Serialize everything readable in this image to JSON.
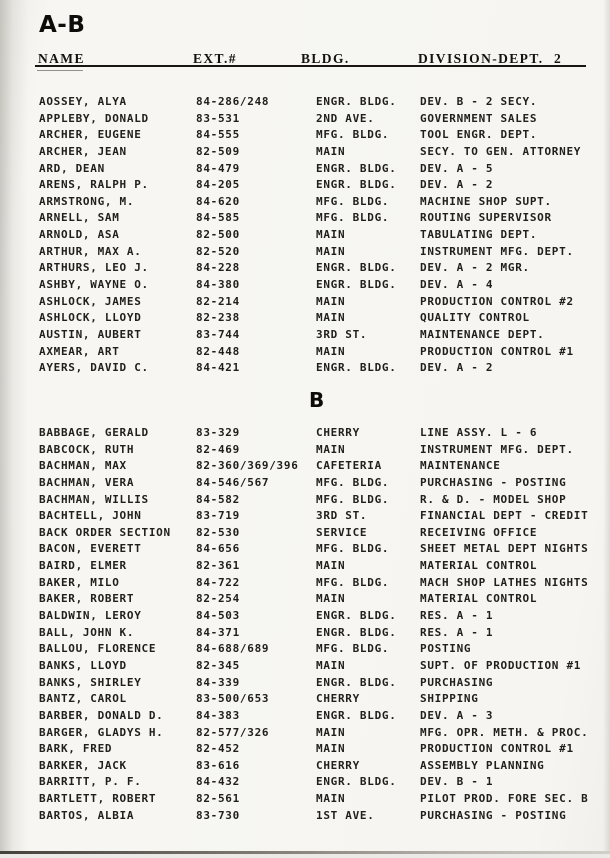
{
  "page": {
    "title": "A-B",
    "page_number": "2",
    "columns": [
      "NAME",
      "EXT.#",
      "BLDG.",
      "DIVISION-DEPT."
    ]
  },
  "sections": [
    {
      "label": "",
      "rows": [
        {
          "name": "AOSSEY, ALYA",
          "ext": "84-286/248",
          "bldg": "ENGR. BLDG.",
          "dept": "DEV. B - 2 SECY."
        },
        {
          "name": "APPLEBY, DONALD",
          "ext": "83-531",
          "bldg": "2ND AVE.",
          "dept": "GOVERNMENT SALES"
        },
        {
          "name": "ARCHER, EUGENE",
          "ext": "84-555",
          "bldg": "MFG. BLDG.",
          "dept": "TOOL ENGR. DEPT."
        },
        {
          "name": "ARCHER, JEAN",
          "ext": "82-509",
          "bldg": "MAIN",
          "dept": "SECY. TO GEN. ATTORNEY"
        },
        {
          "name": "ARD, DEAN",
          "ext": "84-479",
          "bldg": "ENGR. BLDG.",
          "dept": "DEV. A - 5"
        },
        {
          "name": "ARENS, RALPH P.",
          "ext": "84-205",
          "bldg": "ENGR. BLDG.",
          "dept": "DEV. A - 2"
        },
        {
          "name": "ARMSTRONG, M.",
          "ext": "84-620",
          "bldg": "MFG. BLDG.",
          "dept": "MACHINE SHOP SUPT."
        },
        {
          "name": "ARNELL, SAM",
          "ext": "84-585",
          "bldg": "MFG. BLDG.",
          "dept": "ROUTING SUPERVISOR"
        },
        {
          "name": "ARNOLD, ASA",
          "ext": "82-500",
          "bldg": "MAIN",
          "dept": "TABULATING DEPT."
        },
        {
          "name": "ARTHUR, MAX A.",
          "ext": "82-520",
          "bldg": "MAIN",
          "dept": "INSTRUMENT MFG. DEPT."
        },
        {
          "name": "ARTHURS, LEO J.",
          "ext": "84-228",
          "bldg": "ENGR. BLDG.",
          "dept": "DEV. A - 2 MGR."
        },
        {
          "name": "ASHBY, WAYNE O.",
          "ext": "84-380",
          "bldg": "ENGR. BLDG.",
          "dept": "DEV. A - 4"
        },
        {
          "name": "ASHLOCK, JAMES",
          "ext": "82-214",
          "bldg": "MAIN",
          "dept": "PRODUCTION CONTROL #2"
        },
        {
          "name": "ASHLOCK, LLOYD",
          "ext": "82-238",
          "bldg": "MAIN",
          "dept": "QUALITY CONTROL"
        },
        {
          "name": "AUSTIN, AUBERT",
          "ext": "83-744",
          "bldg": "3RD ST.",
          "dept": "MAINTENANCE DEPT."
        },
        {
          "name": "AXMEAR, ART",
          "ext": "82-448",
          "bldg": "MAIN",
          "dept": "PRODUCTION CONTROL #1"
        },
        {
          "name": "AYERS, DAVID C.",
          "ext": "84-421",
          "bldg": "ENGR. BLDG.",
          "dept": "DEV. A - 2"
        }
      ]
    },
    {
      "label": "B",
      "rows": [
        {
          "name": "BABBAGE, GERALD",
          "ext": "83-329",
          "bldg": "CHERRY",
          "dept": "LINE ASSY. L - 6"
        },
        {
          "name": "BABCOCK, RUTH",
          "ext": "82-469",
          "bldg": "MAIN",
          "dept": "INSTRUMENT MFG. DEPT."
        },
        {
          "name": "BACHMAN, MAX",
          "ext": "82-360/369/396",
          "bldg": "CAFETERIA",
          "dept": "MAINTENANCE"
        },
        {
          "name": "BACHMAN, VERA",
          "ext": "84-546/567",
          "bldg": "MFG. BLDG.",
          "dept": "PURCHASING - POSTING"
        },
        {
          "name": "BACHMAN, WILLIS",
          "ext": "84-582",
          "bldg": "MFG. BLDG.",
          "dept": "R. & D. - MODEL SHOP"
        },
        {
          "name": "BACHTELL, JOHN",
          "ext": "83-719",
          "bldg": "3RD ST.",
          "dept": "FINANCIAL DEPT - CREDIT"
        },
        {
          "name": "BACK ORDER SECTION",
          "ext": "82-530",
          "bldg": "SERVICE",
          "dept": "RECEIVING OFFICE"
        },
        {
          "name": "BACON, EVERETT",
          "ext": "84-656",
          "bldg": "MFG. BLDG.",
          "dept": "SHEET METAL DEPT NIGHTS"
        },
        {
          "name": "BAIRD, ELMER",
          "ext": "82-361",
          "bldg": "MAIN",
          "dept": "MATERIAL CONTROL"
        },
        {
          "name": "BAKER, MILO",
          "ext": "84-722",
          "bldg": "MFG. BLDG.",
          "dept": "MACH SHOP LATHES NIGHTS"
        },
        {
          "name": "BAKER, ROBERT",
          "ext": "82-254",
          "bldg": "MAIN",
          "dept": "MATERIAL CONTROL"
        },
        {
          "name": "BALDWIN, LEROY",
          "ext": "84-503",
          "bldg": "ENGR. BLDG.",
          "dept": "RES. A - 1"
        },
        {
          "name": "BALL, JOHN K.",
          "ext": "84-371",
          "bldg": "ENGR. BLDG.",
          "dept": "RES. A - 1"
        },
        {
          "name": "BALLOU, FLORENCE",
          "ext": "84-688/689",
          "bldg": "MFG. BLDG.",
          "dept": "POSTING"
        },
        {
          "name": "BANKS, LLOYD",
          "ext": "82-345",
          "bldg": "MAIN",
          "dept": "SUPT. OF PRODUCTION #1"
        },
        {
          "name": "BANKS, SHIRLEY",
          "ext": "84-339",
          "bldg": "ENGR. BLDG.",
          "dept": "PURCHASING"
        },
        {
          "name": "BANTZ, CAROL",
          "ext": "83-500/653",
          "bldg": "CHERRY",
          "dept": "SHIPPING"
        },
        {
          "name": "BARBER, DONALD D.",
          "ext": "84-383",
          "bldg": "ENGR. BLDG.",
          "dept": "DEV. A - 3"
        },
        {
          "name": "BARGER, GLADYS H.",
          "ext": "82-577/326",
          "bldg": "MAIN",
          "dept": "MFG. OPR. METH. & PROC."
        },
        {
          "name": "BARK, FRED",
          "ext": "82-452",
          "bldg": "MAIN",
          "dept": "PRODUCTION CONTROL #1"
        },
        {
          "name": "BARKER, JACK",
          "ext": "83-616",
          "bldg": "CHERRY",
          "dept": "ASSEMBLY PLANNING"
        },
        {
          "name": "BARRITT, P. F.",
          "ext": "84-432",
          "bldg": "ENGR. BLDG.",
          "dept": "DEV. B - 1"
        },
        {
          "name": "BARTLETT, ROBERT",
          "ext": "82-561",
          "bldg": "MAIN",
          "dept": "PILOT PROD. FORE SEC. B"
        },
        {
          "name": "BARTOS, ALBIA",
          "ext": "83-730",
          "bldg": "1ST AVE.",
          "dept": "PURCHASING - POSTING"
        }
      ]
    }
  ]
}
